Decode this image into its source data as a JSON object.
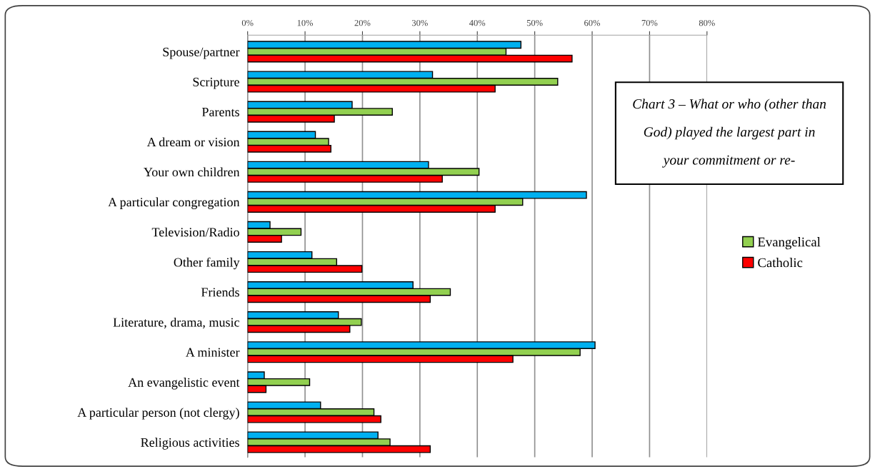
{
  "chart_data": {
    "type": "bar",
    "orientation": "horizontal",
    "title": "Chart 3 – What or who (other than\nGod) played the largest part in\nyour commitment or re-",
    "categories": [
      "Spouse/partner",
      "Scripture",
      "Parents",
      "A dream or vision",
      "Your own children",
      "A particular congregation",
      "Television/Radio",
      "Other family",
      "Friends",
      "Literature, drama, music",
      "A minister",
      "An evangelistic event",
      "A particular person (not clergy)",
      "Religious activities"
    ],
    "series": [
      {
        "color": "#00b0f0",
        "values": [
          47.6,
          32.2,
          18.2,
          11.8,
          31.5,
          59,
          3.9,
          11.2,
          28.8,
          15.8,
          60.5,
          2.9,
          12.7,
          22.7
        ]
      },
      {
        "name": "Evangelical",
        "color": "#92d050",
        "values": [
          45.0,
          54.0,
          25.2,
          14.1,
          40.3,
          47.9,
          9.3,
          15.5,
          35.3,
          19.8,
          57.9,
          10.8,
          22.0,
          24.8
        ]
      },
      {
        "name": "Catholic",
        "color": "#ff0000",
        "values": [
          56.5,
          43.1,
          15.1,
          14.5,
          33.9,
          43.1,
          5.9,
          19.9,
          31.8,
          17.8,
          46.2,
          3.2,
          23.2,
          31.8
        ]
      }
    ],
    "xlim": [
      0,
      80
    ],
    "xticks": [
      {
        "value": 0,
        "label": "0%"
      },
      {
        "value": 10,
        "label": "10%"
      },
      {
        "value": 20,
        "label": "20%"
      },
      {
        "value": 30,
        "label": "30%"
      },
      {
        "value": 40,
        "label": "40%"
      },
      {
        "value": 50,
        "label": "50%"
      },
      {
        "value": 60,
        "label": "60%"
      },
      {
        "value": 70,
        "label": "70%"
      },
      {
        "value": 80,
        "label": "80%"
      }
    ],
    "grid": "x",
    "legend": "right"
  }
}
